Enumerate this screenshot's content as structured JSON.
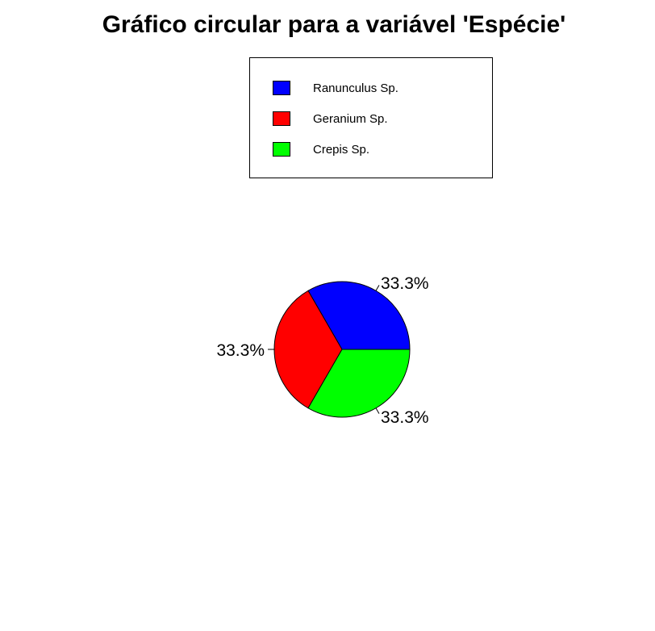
{
  "chart_data": {
    "type": "pie",
    "title": "Gráfico circular para a variável 'Espécie'",
    "slices": [
      {
        "name": "Ranunculus Sp.",
        "value": 33.3,
        "label": "33.3%",
        "color": "#0000ff"
      },
      {
        "name": "Geranium Sp.",
        "value": 33.3,
        "label": "33.3%",
        "color": "#ff0000"
      },
      {
        "name": "Crepis Sp.",
        "value": 33.3,
        "label": "33.3%",
        "color": "#00ff00"
      }
    ],
    "legend_position": "top-right",
    "direction": "counterclockwise",
    "start_angle_deg": 0
  }
}
